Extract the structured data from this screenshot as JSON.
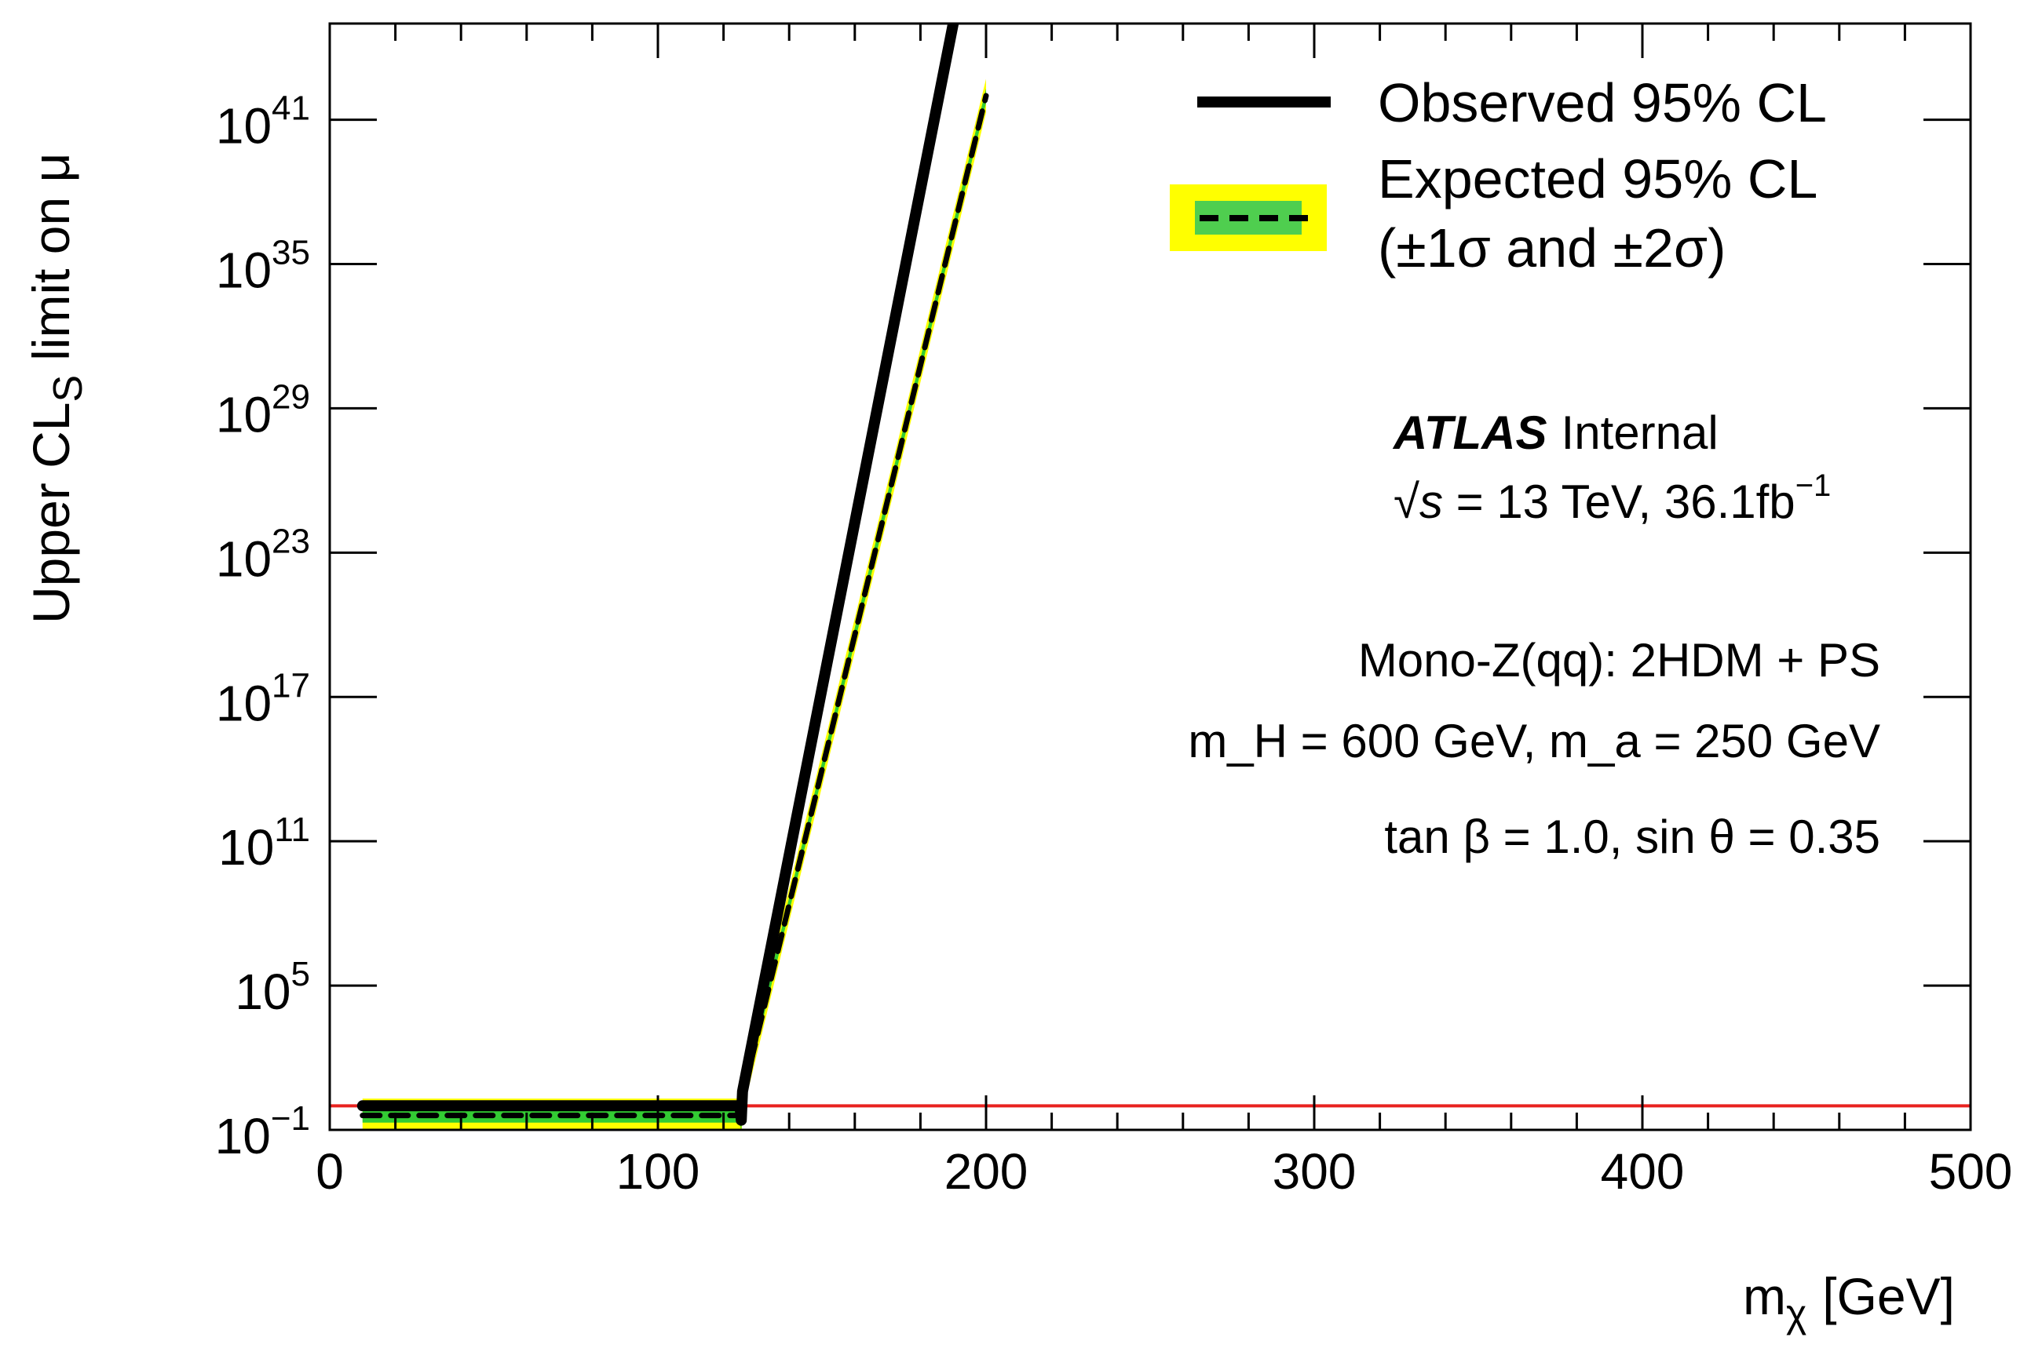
{
  "chart_data": {
    "type": "line",
    "title": "",
    "xlabel": "m",
    "xlabel_sub": "χ",
    "xlabel_unit": "[GeV]",
    "ylabel": "Upper CL",
    "ylabel_sub": "S",
    "ylabel_tail": "limit on μ",
    "xlim": [
      0,
      500
    ],
    "ylog": true,
    "ylim_exp": [
      -1,
      45
    ],
    "x_ticks": [
      0,
      100,
      200,
      300,
      400,
      500
    ],
    "x_tick_labels": [
      "0",
      "100",
      "200",
      "300",
      "400",
      "500"
    ],
    "y_ticks_exp": [
      -1,
      5,
      11,
      17,
      23,
      29,
      35,
      41
    ],
    "y_tick_base": "10",
    "y_tick_exps": [
      "−1",
      "5",
      "11",
      "17",
      "23",
      "29",
      "35",
      "41"
    ],
    "reference_line": {
      "y": 1,
      "color": "#e8221f"
    },
    "series": [
      {
        "name": "Observed 95% CL",
        "style": "solid",
        "color": "#000000",
        "points": [
          [
            10,
            0.0
          ],
          [
            125,
            0.0
          ],
          [
            125.4,
            -0.6
          ],
          [
            125.8,
            0.6
          ],
          [
            190,
            45
          ]
        ]
      },
      {
        "name": "Expected 95% CL",
        "style": "dashed",
        "color": "#000000",
        "points": [
          [
            10,
            -0.4
          ],
          [
            125,
            -0.4
          ],
          [
            125.4,
            -0.8
          ],
          [
            125.8,
            0.4
          ],
          [
            200,
            42
          ]
        ]
      }
    ],
    "bands": [
      {
        "name": "±2σ",
        "color": "#ffff00"
      },
      {
        "name": "±1σ",
        "color": "#33cc33"
      }
    ],
    "legend": {
      "position": "top-right",
      "observed": "Observed 95% CL",
      "expected_line1": "Expected 95% CL",
      "expected_line2": "(±1σ and ±2σ)"
    },
    "annotations": {
      "atlas": "ATLAS",
      "atlas_status": "Internal",
      "lumi_prefix": "√",
      "lumi_s": "s",
      "lumi_text": " = 13 TeV, 36.1fb",
      "lumi_exp": "−1",
      "model": "Mono-Z(qq): 2HDM + PS",
      "masses": "m_H = 600 GeV, m_a = 250 GeV",
      "params": "tan β = 1.0, sin θ = 0.35"
    }
  }
}
